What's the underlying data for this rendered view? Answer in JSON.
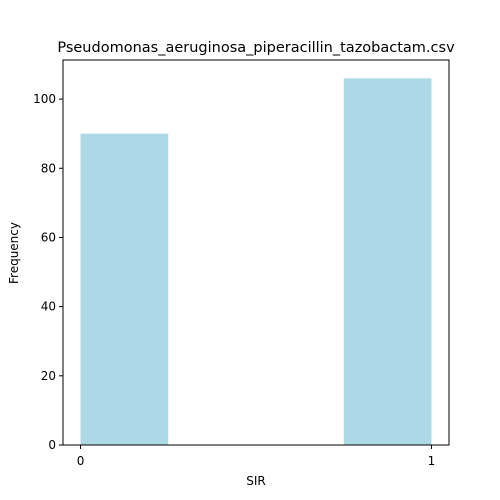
{
  "chart_data": {
    "type": "bar",
    "title": "Pseudomonas_aeruginosa_piperacillin_tazobactam.csv",
    "xlabel": "SIR",
    "ylabel": "Frequency",
    "bins": [
      {
        "x_start": 0.0,
        "x_end": 0.5,
        "value": 90
      },
      {
        "x_start": 0.5,
        "x_end": 1.0,
        "value": 106
      }
    ],
    "x_ticks": [
      0,
      1
    ],
    "y_ticks": [
      0,
      20,
      40,
      60,
      80,
      100
    ],
    "xlim": [
      -0.05,
      1.05
    ],
    "ylim": [
      0,
      111.3
    ],
    "bar_color": "#add8e6",
    "grid": false,
    "legend": "none"
  }
}
